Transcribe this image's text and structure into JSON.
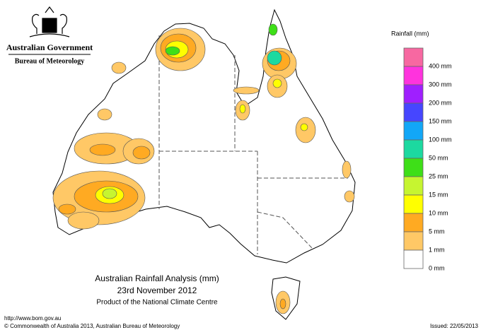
{
  "header": {
    "government": "Australian Government",
    "bureau": "Bureau of Meteorology"
  },
  "legend": {
    "title": "Rainfall (mm)",
    "items": [
      {
        "label": "400 mm",
        "color": "#f768a1"
      },
      {
        "label": "300 mm",
        "color": "#ff33dd"
      },
      {
        "label": "200 mm",
        "color": "#9f1fff"
      },
      {
        "label": "150 mm",
        "color": "#4646ff"
      },
      {
        "label": "100 mm",
        "color": "#12a7f7"
      },
      {
        "label": "50 mm",
        "color": "#1cd9a0"
      },
      {
        "label": "25 mm",
        "color": "#3edf18"
      },
      {
        "label": "15 mm",
        "color": "#c6f530"
      },
      {
        "label": "10 mm",
        "color": "#ffff00"
      },
      {
        "label": "5 mm",
        "color": "#ffaa22"
      },
      {
        "label": "1 mm",
        "color": "#ffc866"
      },
      {
        "label": "0 mm",
        "color": "#ffffff"
      }
    ]
  },
  "title": {
    "line1": "Australian Rainfall Analysis (mm)",
    "line2": "23rd November 2012",
    "line3": "Product of the National Climate Centre"
  },
  "footer": {
    "url": "http://www.bom.gov.au",
    "copyright": "© Commonwealth of Australia 2013, Australian Bureau of Meteorology",
    "issued": "Issued: 22/05/2013"
  }
}
